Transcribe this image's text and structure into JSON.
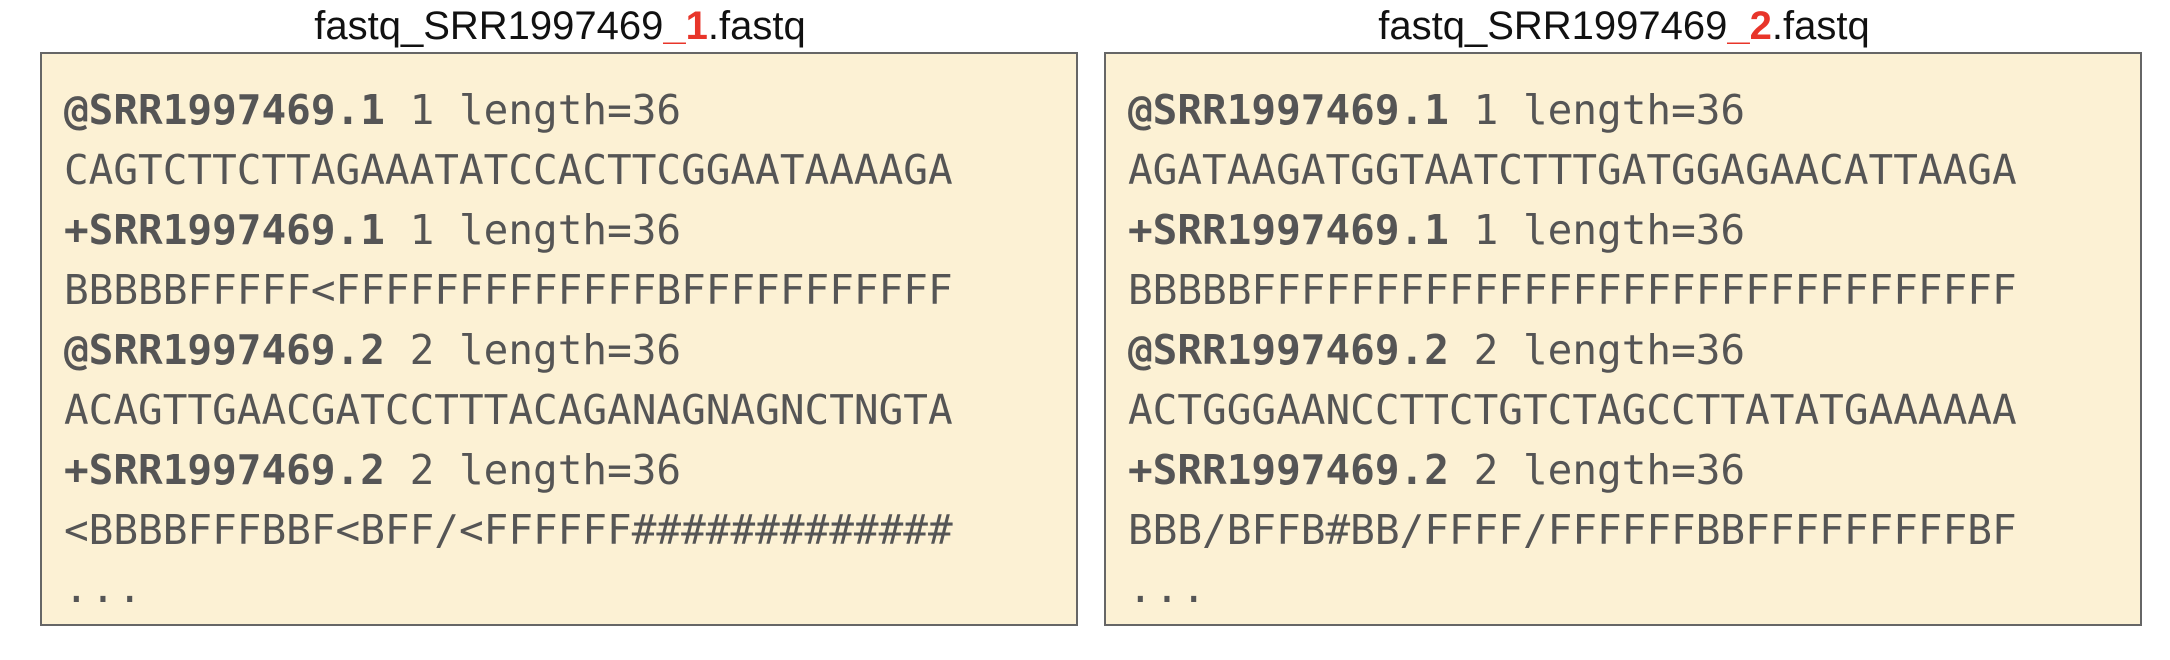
{
  "files": [
    {
      "title_prefix": "fastq_SRR1997469",
      "title_accent": "_1",
      "title_suffix": ".fastq",
      "records": [
        {
          "header_id": "@SRR1997469.1",
          "header_rest": " 1 length=36",
          "sequence": "CAGTCTTCTTAGAAATATCCACTTCGGAATAAAAGA",
          "plus_id": "+SRR1997469.1",
          "plus_rest": " 1 length=36",
          "quality": "BBBBBFFFFF<FFFFFFFFFFFFFBFFFFFFFFFFF"
        },
        {
          "header_id": "@SRR1997469.2",
          "header_rest": " 2 length=36",
          "sequence": "ACAGTTGAACGATCCTTTACAGANAGNAGNCTNGTA",
          "plus_id": "+SRR1997469.2",
          "plus_rest": " 2 length=36",
          "quality": "<BBBBFFFBBF<BFF/<FFFFFF#############"
        }
      ],
      "ellipsis": "..."
    },
    {
      "title_prefix": "fastq_SRR1997469",
      "title_accent": "_2",
      "title_suffix": ".fastq",
      "records": [
        {
          "header_id": "@SRR1997469.1",
          "header_rest": " 1 length=36",
          "sequence": "AGATAAGATGGTAATCTTTGATGGAGAACATTAAGA",
          "plus_id": "+SRR1997469.1",
          "plus_rest": " 1 length=36",
          "quality": "BBBBBFFFFFFFFFFFFFFFFFFFFFFFFFFFFFFF"
        },
        {
          "header_id": "@SRR1997469.2",
          "header_rest": " 2 length=36",
          "sequence": "ACTGGGAANCCTTCTGTCTAGCCTTATATGAAAAAA",
          "plus_id": "+SRR1997469.2",
          "plus_rest": " 2 length=36",
          "quality": "BBB/BFFB#BB/FFFF/FFFFFFBBFFFFFFFFFBF"
        }
      ],
      "ellipsis": "..."
    }
  ],
  "colors": {
    "accent": "#e8352a",
    "box_background": "#fcf1d4",
    "box_border": "#666666",
    "text": "#555555"
  }
}
